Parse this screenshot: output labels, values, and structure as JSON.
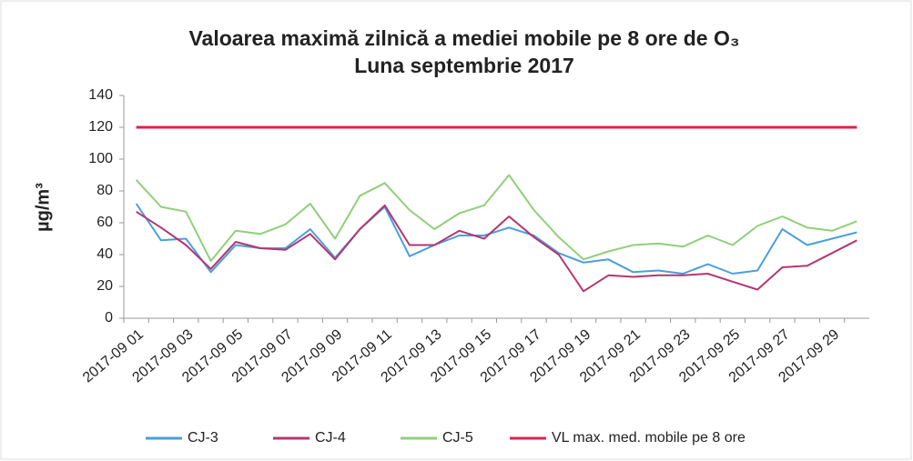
{
  "chart_data": {
    "type": "line",
    "title": "Valoarea maximă zilnică a mediei mobile pe 8 ore de O₃",
    "subtitle": "Luna septembrie 2017",
    "y_label": "µg/m³",
    "categories": [
      "2017-09 01",
      null,
      "2017-09 03",
      null,
      "2017-09 05",
      null,
      "2017-09 07",
      null,
      "2017-09 09",
      null,
      "2017-09 11",
      null,
      "2017-09 13",
      null,
      "2017-09 15",
      null,
      "2017-09 17",
      null,
      "2017-09 19",
      null,
      "2017-09 21",
      null,
      "2017-09 23",
      null,
      "2017-09 25",
      null,
      "2017-09 27",
      null,
      "2017-09 29",
      null
    ],
    "series": [
      {
        "name": "CJ-3",
        "color": "#4a9fde",
        "values": [
          72,
          49,
          50,
          29,
          46,
          44,
          44,
          56,
          38,
          56,
          70,
          39,
          46,
          52,
          52,
          57,
          52,
          41,
          35,
          37,
          29,
          30,
          28,
          34,
          28,
          30,
          56,
          46,
          50,
          54
        ]
      },
      {
        "name": "CJ-4",
        "color": "#b4376f",
        "values": [
          67,
          57,
          46,
          31,
          48,
          44,
          43,
          53,
          37,
          56,
          71,
          46,
          46,
          55,
          50,
          64,
          51,
          40,
          17,
          27,
          26,
          27,
          27,
          28,
          23,
          18,
          32,
          33,
          41,
          49
        ]
      },
      {
        "name": "CJ-5",
        "color": "#8fd07a",
        "values": [
          87,
          70,
          67,
          36,
          55,
          53,
          59,
          72,
          50,
          77,
          85,
          68,
          56,
          66,
          71,
          90,
          68,
          51,
          37,
          42,
          46,
          47,
          45,
          52,
          46,
          58,
          64,
          57,
          55,
          61
        ]
      },
      {
        "name": "VL max. med. mobile pe 8 ore",
        "color": "#e0204f",
        "values": [
          120,
          120,
          120,
          120,
          120,
          120,
          120,
          120,
          120,
          120,
          120,
          120,
          120,
          120,
          120,
          120,
          120,
          120,
          120,
          120,
          120,
          120,
          120,
          120,
          120,
          120,
          120,
          120,
          120,
          120
        ]
      }
    ],
    "ylim": [
      0,
      140
    ],
    "yticks": [
      0,
      20,
      40,
      60,
      80,
      100,
      120,
      140
    ],
    "grid": false,
    "legend": "bottom"
  }
}
